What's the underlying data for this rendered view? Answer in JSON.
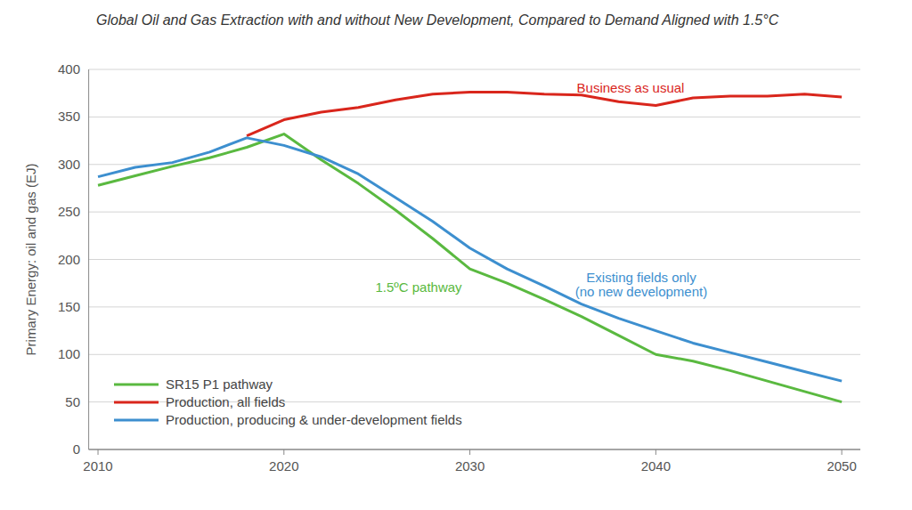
{
  "chart_data": {
    "type": "line",
    "title": "Global Oil and Gas Extraction with and without New Development, Compared to Demand Aligned with 1.5°C",
    "y_label": "Primary Energy: oil and gas (EJ)",
    "annotations": [
      "Business as usual",
      "1.5ºC pathway",
      "Existing fields only",
      "(no new development)"
    ],
    "x": [
      2010,
      2012,
      2014,
      2016,
      2018,
      2020,
      2022,
      2024,
      2026,
      2028,
      2030,
      2032,
      2034,
      2036,
      2038,
      2040,
      2042,
      2044,
      2046,
      2048,
      2050
    ],
    "series": [
      {
        "name": "SR15 P1 pathway",
        "color": "#5ab940",
        "values": [
          278,
          288,
          298,
          307,
          318,
          332,
          305,
          280,
          252,
          222,
          190,
          175,
          158,
          140,
          120,
          100,
          93,
          83,
          72,
          61,
          50
        ]
      },
      {
        "name": "Production, all fields",
        "color": "#d9261c",
        "values": [
          null,
          null,
          null,
          null,
          330,
          347,
          355,
          360,
          368,
          374,
          376,
          376,
          374,
          373,
          366,
          362,
          370,
          372,
          372,
          374,
          371
        ]
      },
      {
        "name": "Production, producing & under-development fields",
        "color": "#3d8fcf",
        "values": [
          287,
          297,
          302,
          313,
          328,
          320,
          308,
          290,
          265,
          240,
          212,
          190,
          172,
          153,
          138,
          125,
          112,
          102,
          92,
          82,
          72
        ]
      }
    ],
    "xlim": [
      2009.5,
      2051
    ],
    "xticks": [
      2010,
      2020,
      2030,
      2040,
      2050
    ],
    "ylim": [
      0,
      400
    ],
    "yticks": [
      0,
      50,
      100,
      150,
      200,
      250,
      300,
      350,
      400
    ],
    "grid": true,
    "legend": "lower left"
  }
}
